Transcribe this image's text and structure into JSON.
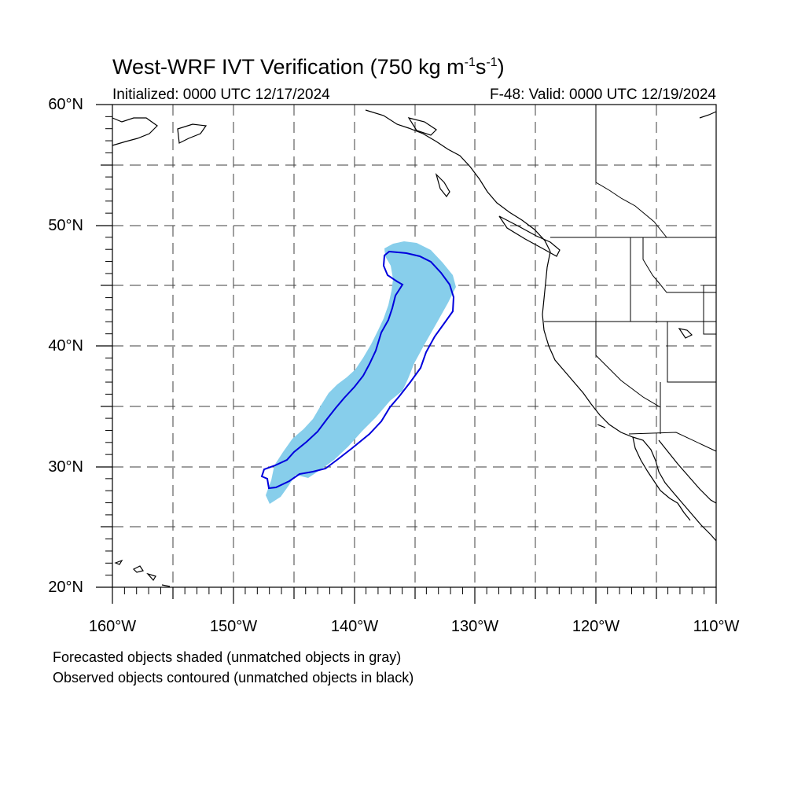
{
  "header": {
    "title_main": "West-WRF IVT Verification (750 kg m",
    "title_exp1": "-1",
    "title_mid": "s",
    "title_exp2": "-1",
    "title_end": ")",
    "initialized": "Initialized: 0000 UTC 12/17/2024",
    "valid": "F-48: Valid: 0000 UTC 12/19/2024"
  },
  "axes": {
    "lat_labels": [
      "60°N",
      "50°N",
      "40°N",
      "30°N",
      "20°N"
    ],
    "lon_labels": [
      "160°W",
      "150°W",
      "140°W",
      "130°W",
      "120°W",
      "110°W"
    ],
    "lat_range": [
      20,
      60
    ],
    "lon_range": [
      -160,
      -110
    ],
    "grid": "dashed every 5°"
  },
  "legend": {
    "line1": "Forecasted objects shaded (unmatched objects in gray)",
    "line2": "Observed objects contoured (unmatched objects in black)"
  },
  "colors": {
    "forecast_fill": "#87ceeb",
    "observed_contour": "#0000dd",
    "coastline": "#000000",
    "grid": "#000000",
    "background": "#ffffff"
  },
  "objects": {
    "forecast_object": "matched forecast IVT object (shaded)",
    "observed_object": "matched observed IVT object (contoured)"
  }
}
